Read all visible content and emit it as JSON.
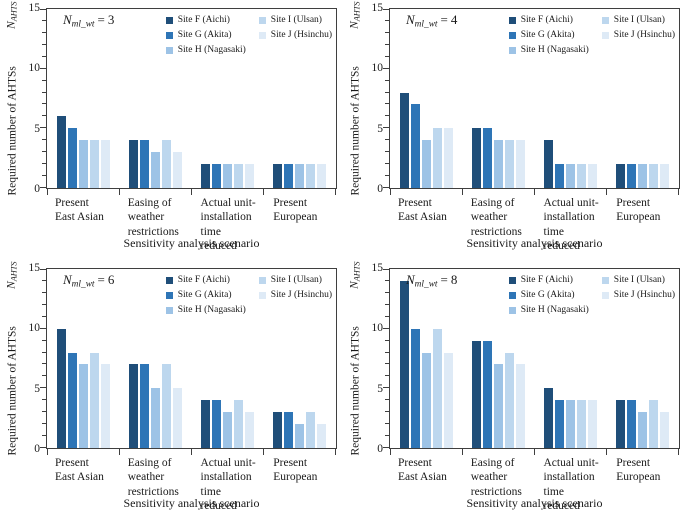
{
  "figure": {
    "x_axis_title": "Sensitivity analysis scenario",
    "y_axis_title": "Required number of AHTSs",
    "y_axis_symbol": "N",
    "y_axis_symbol_subscript": "AHTS",
    "y_tick_labels": [
      "15",
      "10",
      "5",
      "0"
    ],
    "y_tick_values": [
      15,
      10,
      5,
      0
    ],
    "y_max": 15,
    "axis_color": "#3f3f3f",
    "category_labels": [
      "Present\nEast Asian",
      "Easing of\nweather\nrestrictions",
      "Actual unit-\ninstallation time\nreduced",
      "Present\nEuropean"
    ]
  },
  "legend": {
    "items": [
      {
        "label": "Site F (Aichi)",
        "color": "#1F4E79"
      },
      {
        "label": "Site G (Akita)",
        "color": "#2E75B6"
      },
      {
        "label": "Site H (Nagasaki)",
        "color": "#9DC3E6"
      },
      {
        "label": "Site I (Ulsan)",
        "color": "#BDD7EE"
      },
      {
        "label": "Site J (Hsinchu)",
        "color": "#DEEAF6"
      }
    ]
  },
  "chart_data": [
    {
      "type": "bar",
      "title": "N_ml_wt = 3",
      "panel_label": {
        "symbol": "N",
        "subscript": "ml_wt",
        "equals": "=",
        "value": "3"
      },
      "xlabel": "Sensitivity analysis scenario",
      "ylabel": "Required number of AHTSs (N_AHTS)",
      "ylim": [
        0,
        15
      ],
      "grid": false,
      "legend_position": "upper right",
      "categories": [
        "Present East Asian",
        "Easing of weather restrictions",
        "Actual unit-installation time reduced",
        "Present European"
      ],
      "series": [
        {
          "name": "Site F (Aichi)",
          "color": "#1F4E79",
          "values": [
            6,
            4,
            2,
            2
          ]
        },
        {
          "name": "Site G (Akita)",
          "color": "#2E75B6",
          "values": [
            5,
            4,
            2,
            2
          ]
        },
        {
          "name": "Site H (Nagasaki)",
          "color": "#9DC3E6",
          "values": [
            4,
            3,
            2,
            2
          ]
        },
        {
          "name": "Site I (Ulsan)",
          "color": "#BDD7EE",
          "values": [
            4,
            4,
            2,
            2
          ]
        },
        {
          "name": "Site J (Hsinchu)",
          "color": "#DEEAF6",
          "values": [
            4,
            3,
            2,
            2
          ]
        }
      ]
    },
    {
      "type": "bar",
      "title": "N_ml_wt = 4",
      "panel_label": {
        "symbol": "N",
        "subscript": "ml_wt",
        "equals": "=",
        "value": "4"
      },
      "xlabel": "Sensitivity analysis scenario",
      "ylabel": "Required number of AHTSs (N_AHTS)",
      "ylim": [
        0,
        15
      ],
      "grid": false,
      "legend_position": "upper right",
      "categories": [
        "Present East Asian",
        "Easing of weather restrictions",
        "Actual unit-installation time reduced",
        "Present European"
      ],
      "series": [
        {
          "name": "Site F (Aichi)",
          "color": "#1F4E79",
          "values": [
            8,
            5,
            4,
            2
          ]
        },
        {
          "name": "Site G (Akita)",
          "color": "#2E75B6",
          "values": [
            7,
            5,
            2,
            2
          ]
        },
        {
          "name": "Site H (Nagasaki)",
          "color": "#9DC3E6",
          "values": [
            4,
            4,
            2,
            2
          ]
        },
        {
          "name": "Site I (Ulsan)",
          "color": "#BDD7EE",
          "values": [
            5,
            4,
            2,
            2
          ]
        },
        {
          "name": "Site J (Hsinchu)",
          "color": "#DEEAF6",
          "values": [
            5,
            4,
            2,
            2
          ]
        }
      ]
    },
    {
      "type": "bar",
      "title": "N_ml_wt = 6",
      "panel_label": {
        "symbol": "N",
        "subscript": "ml_wt",
        "equals": "=",
        "value": "6"
      },
      "xlabel": "Sensitivity analysis scenario",
      "ylabel": "Required number of AHTSs (N_AHTS)",
      "ylim": [
        0,
        15
      ],
      "grid": false,
      "legend_position": "upper right",
      "categories": [
        "Present East Asian",
        "Easing of weather restrictions",
        "Actual unit-installation time reduced",
        "Present European"
      ],
      "series": [
        {
          "name": "Site F (Aichi)",
          "color": "#1F4E79",
          "values": [
            10,
            7,
            4,
            3
          ]
        },
        {
          "name": "Site G (Akita)",
          "color": "#2E75B6",
          "values": [
            8,
            7,
            4,
            3
          ]
        },
        {
          "name": "Site H (Nagasaki)",
          "color": "#9DC3E6",
          "values": [
            7,
            5,
            3,
            2
          ]
        },
        {
          "name": "Site I (Ulsan)",
          "color": "#BDD7EE",
          "values": [
            8,
            7,
            4,
            3
          ]
        },
        {
          "name": "Site J (Hsinchu)",
          "color": "#DEEAF6",
          "values": [
            7,
            5,
            3,
            2
          ]
        }
      ]
    },
    {
      "type": "bar",
      "title": "N_ml_wt = 8",
      "panel_label": {
        "symbol": "N",
        "subscript": "ml_wt",
        "equals": "=",
        "value": "8"
      },
      "xlabel": "Sensitivity analysis scenario",
      "ylabel": "Required number of AHTSs (N_AHTS)",
      "ylim": [
        0,
        15
      ],
      "grid": false,
      "legend_position": "upper right",
      "categories": [
        "Present East Asian",
        "Easing of weather restrictions",
        "Actual unit-installation time reduced",
        "Present European"
      ],
      "series": [
        {
          "name": "Site F (Aichi)",
          "color": "#1F4E79",
          "values": [
            14,
            9,
            5,
            4
          ]
        },
        {
          "name": "Site G (Akita)",
          "color": "#2E75B6",
          "values": [
            10,
            9,
            4,
            4
          ]
        },
        {
          "name": "Site H (Nagasaki)",
          "color": "#9DC3E6",
          "values": [
            8,
            7,
            4,
            3
          ]
        },
        {
          "name": "Site I (Ulsan)",
          "color": "#BDD7EE",
          "values": [
            10,
            8,
            4,
            4
          ]
        },
        {
          "name": "Site J (Hsinchu)",
          "color": "#DEEAF6",
          "values": [
            8,
            7,
            4,
            3
          ]
        }
      ]
    }
  ]
}
